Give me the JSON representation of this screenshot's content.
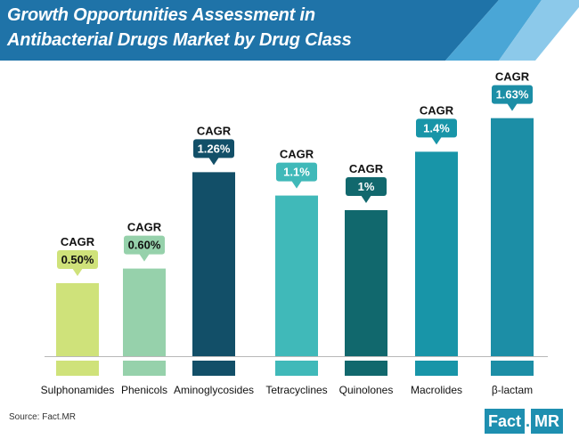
{
  "header": {
    "title_line1": "Growth Opportunities Assessment in",
    "title_line2": "Antibacterial Drugs Market by Drug Class"
  },
  "footer": {
    "source": "Source: Fact.MR",
    "logo_part1": "Fact",
    "logo_part2": ".",
    "logo_part3": "MR"
  },
  "colors": {
    "header_bg": "#1f73a8",
    "header_stripe_1": "#4aa6d6",
    "header_stripe_2": "#8cc9ea",
    "axis_line": "#b8b8b8",
    "label_text": "#111111"
  },
  "chart_data": {
    "type": "bar",
    "title": "Growth Opportunities Assessment in Antibacterial Drugs Market by Drug Class",
    "xlabel": "",
    "ylabel": "",
    "categories": [
      "Sulphonamides",
      "Phenicols",
      "Aminoglycosides",
      "Tetracyclines",
      "Quinolones",
      "Macrolides",
      "β-lactam"
    ],
    "values": [
      0.5,
      0.6,
      1.26,
      1.1,
      1.0,
      1.4,
      1.63
    ],
    "value_labels": [
      "0.50%",
      "0.60%",
      "1.26%",
      "1.1%",
      "1%",
      "1.4%",
      "1.63%"
    ],
    "value_prefix": "CAGR",
    "bar_colors": [
      "#cfe27a",
      "#96d1ab",
      "#124f68",
      "#40b9b9",
      "#11686d",
      "#1895a8",
      "#1c8ea6"
    ],
    "ylim": [
      0,
      1.8
    ],
    "grid": false,
    "legend": "none"
  }
}
